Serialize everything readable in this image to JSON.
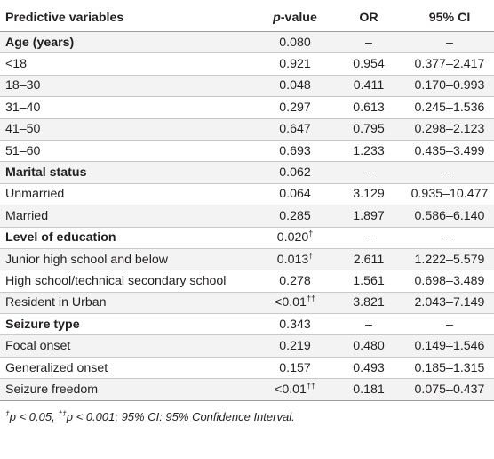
{
  "table": {
    "headers": {
      "variable": "Predictive variables",
      "p_prefix": "p",
      "p_suffix": "-value",
      "or": "OR",
      "ci": "95% CI"
    },
    "rows": [
      {
        "label": "Age (years)",
        "p": "0.080",
        "sup": "",
        "or": "–",
        "ci": "–",
        "group": true
      },
      {
        "label": "<18",
        "p": "0.921",
        "sup": "",
        "or": "0.954",
        "ci": "0.377–2.417",
        "group": false
      },
      {
        "label": "18–30",
        "p": "0.048",
        "sup": "",
        "or": "0.411",
        "ci": "0.170–0.993",
        "group": false
      },
      {
        "label": "31–40",
        "p": "0.297",
        "sup": "",
        "or": "0.613",
        "ci": "0.245–1.536",
        "group": false
      },
      {
        "label": "41–50",
        "p": "0.647",
        "sup": "",
        "or": "0.795",
        "ci": "0.298–2.123",
        "group": false
      },
      {
        "label": "51–60",
        "p": "0.693",
        "sup": "",
        "or": "1.233",
        "ci": "0.435–3.499",
        "group": false
      },
      {
        "label": "Marital status",
        "p": "0.062",
        "sup": "",
        "or": "–",
        "ci": "–",
        "group": true
      },
      {
        "label": "Unmarried",
        "p": "0.064",
        "sup": "",
        "or": "3.129",
        "ci": "0.935–10.477",
        "group": false
      },
      {
        "label": "Married",
        "p": "0.285",
        "sup": "",
        "or": "1.897",
        "ci": "0.586–6.140",
        "group": false
      },
      {
        "label": "Level of education",
        "p": "0.020",
        "sup": "†",
        "or": "–",
        "ci": "–",
        "group": true
      },
      {
        "label": "Junior high school and below",
        "p": "0.013",
        "sup": "†",
        "or": "2.611",
        "ci": "1.222–5.579",
        "group": false
      },
      {
        "label": "High school/technical secondary school",
        "p": "0.278",
        "sup": "",
        "or": "1.561",
        "ci": "0.698–3.489",
        "group": false
      },
      {
        "label": "Resident in Urban",
        "p": "<0.01",
        "sup": "††",
        "or": "3.821",
        "ci": "2.043–7.149",
        "group": false
      },
      {
        "label": "Seizure type",
        "p": "0.343",
        "sup": "",
        "or": "–",
        "ci": "–",
        "group": true
      },
      {
        "label": "Focal onset",
        "p": "0.219",
        "sup": "",
        "or": "0.480",
        "ci": "0.149–1.546",
        "group": false
      },
      {
        "label": "Generalized onset",
        "p": "0.157",
        "sup": "",
        "or": "0.493",
        "ci": "0.185–1.315",
        "group": false
      },
      {
        "label": "Seizure freedom",
        "p": "<0.01",
        "sup": "††",
        "or": "0.181",
        "ci": "0.075–0.437",
        "group": false
      }
    ]
  },
  "footnote": {
    "sup1": "†",
    "part1": "p < 0.05, ",
    "sup2": "††",
    "part2": "p < 0.001; 95% CI: 95% Confidence Interval."
  },
  "colors": {
    "stripe": "#f3f3f3",
    "rule": "#9d9d9d",
    "text": "#231f20"
  }
}
